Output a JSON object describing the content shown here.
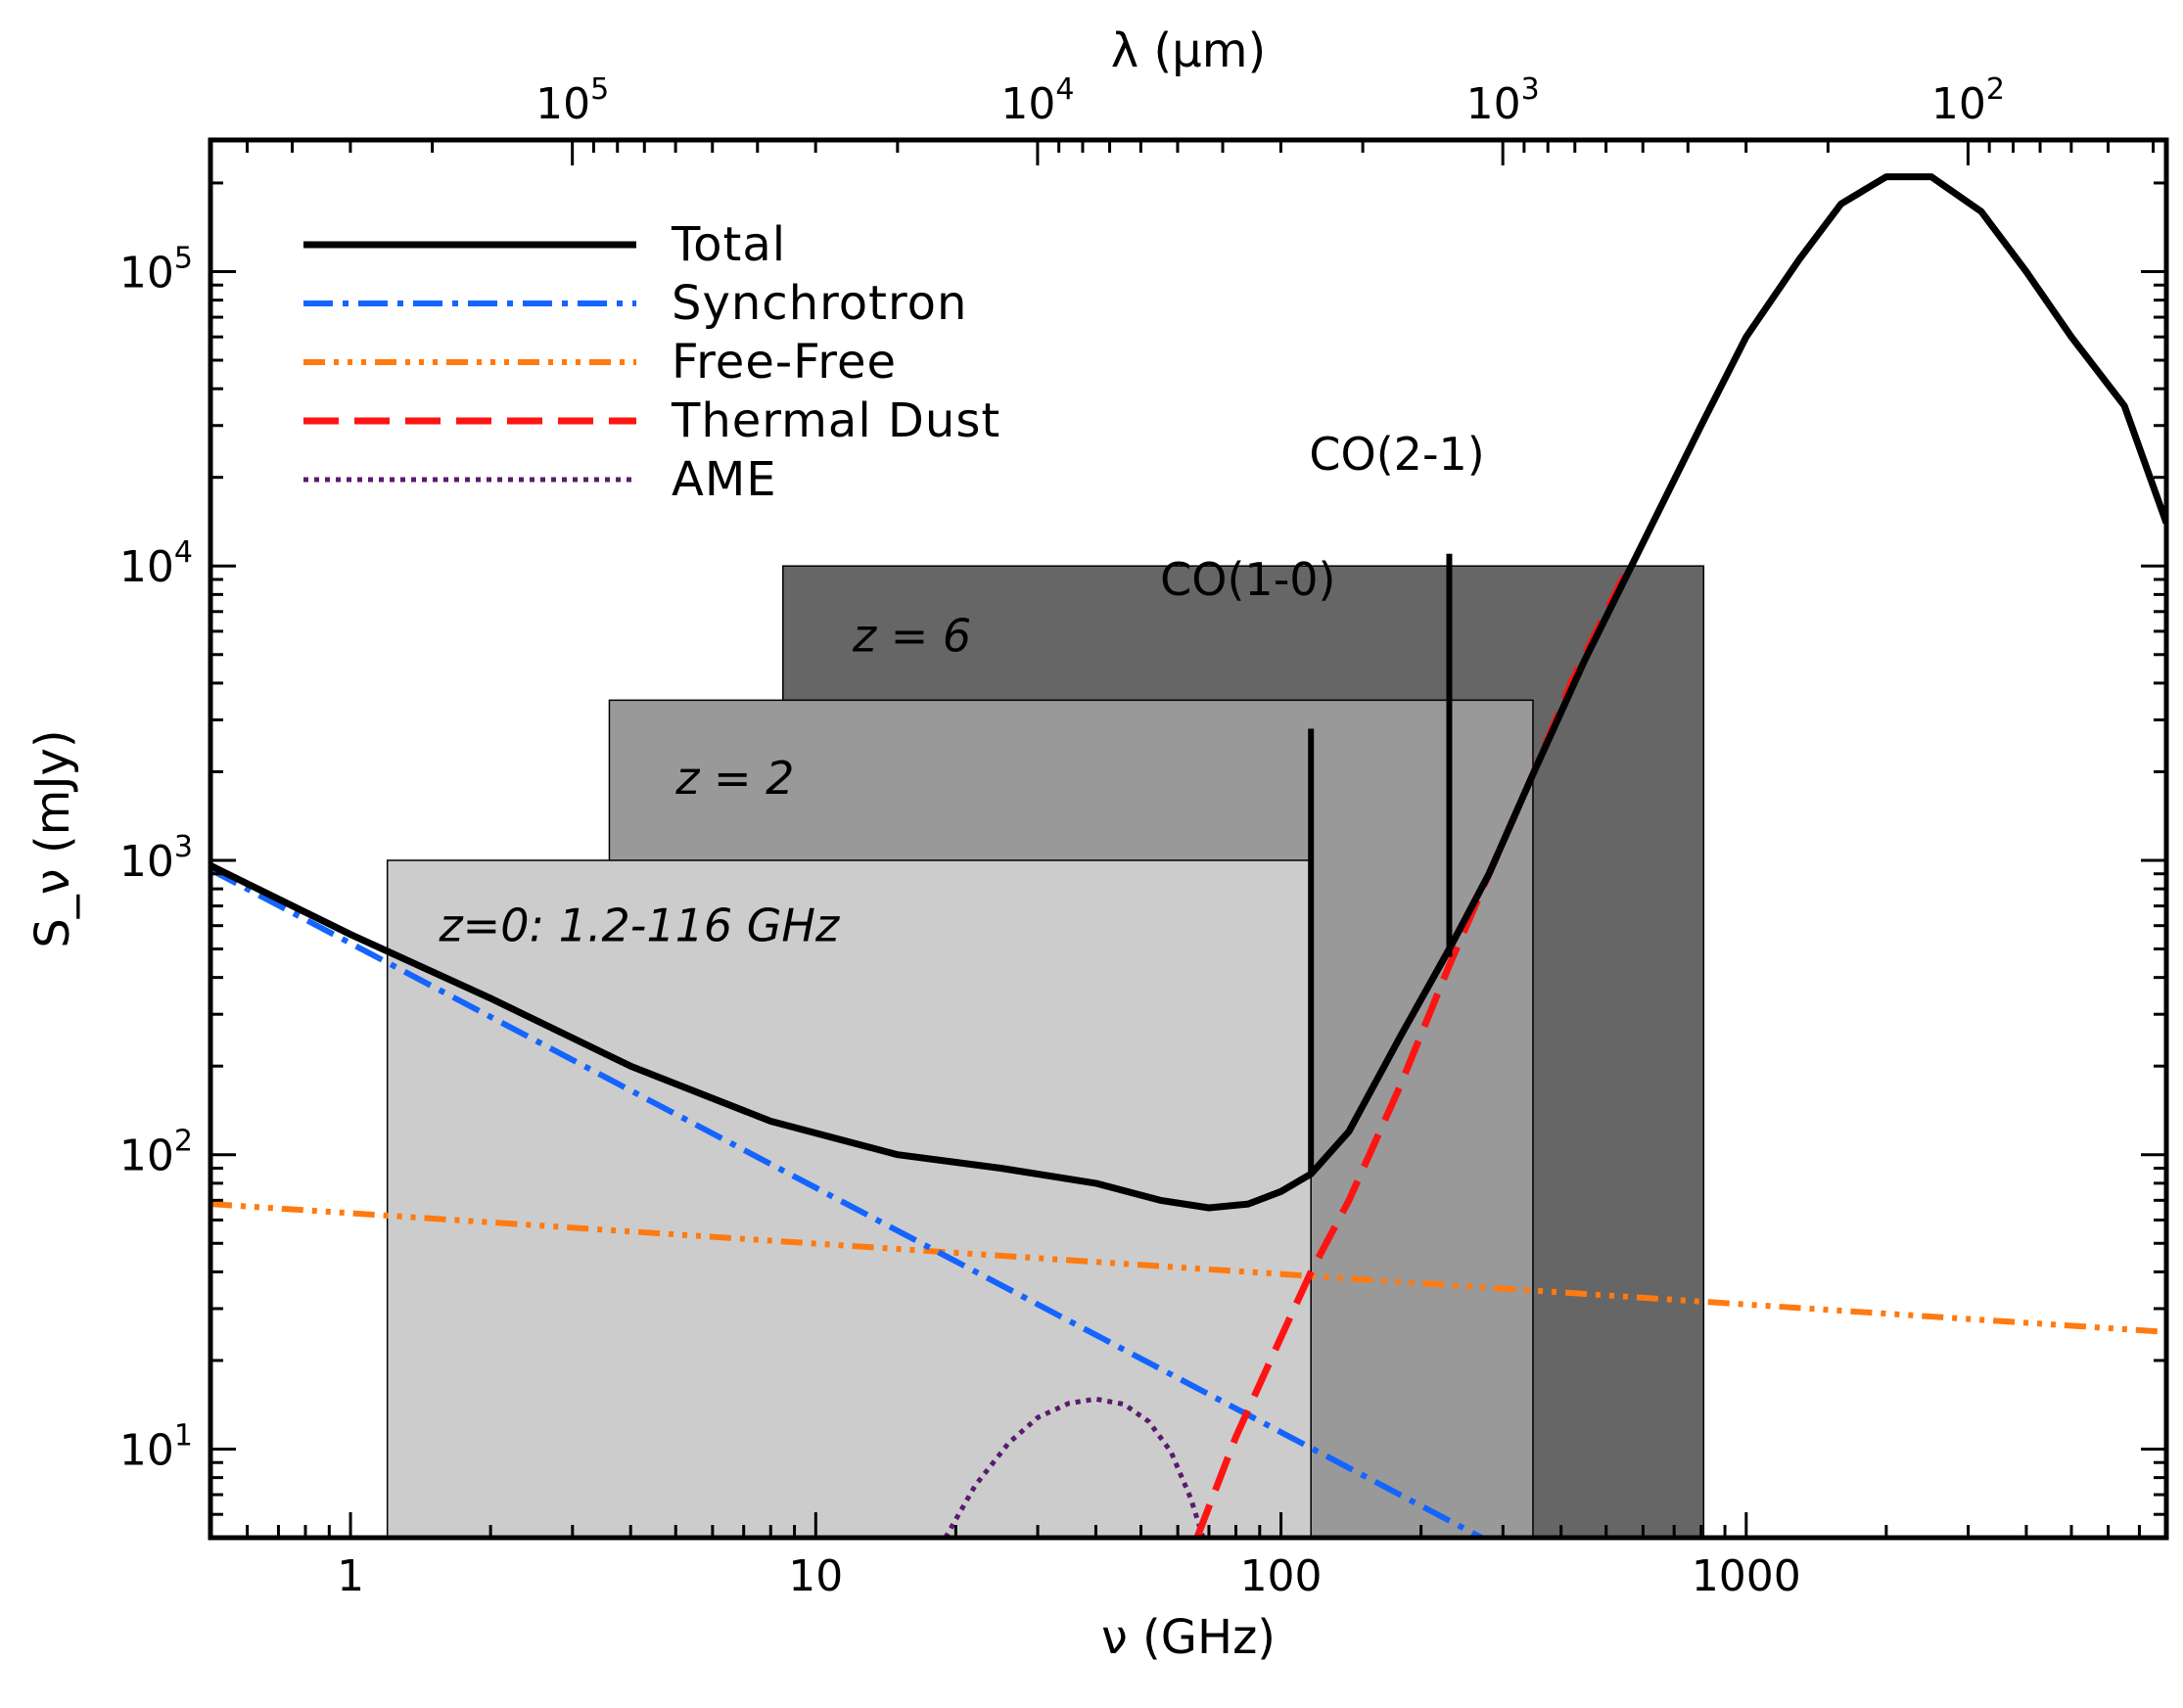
{
  "chart_data": {
    "type": "line",
    "title": "",
    "xlabel": "ν (GHz)",
    "x2label": "λ (μm)",
    "ylabel": "S_ν (mJy)",
    "xscale": "log",
    "yscale": "log",
    "xlim": [
      0.5,
      8000
    ],
    "ylim": [
      5,
      280000
    ],
    "grid": false,
    "legend_position": "top-left",
    "x_ticks": [
      {
        "value": 1,
        "label": "1"
      },
      {
        "value": 10,
        "label": "10"
      },
      {
        "value": 100,
        "label": "100"
      },
      {
        "value": 1000,
        "label": "1000"
      }
    ],
    "y_ticks": [
      {
        "value": 10,
        "base": "10",
        "exp": "1"
      },
      {
        "value": 100,
        "base": "10",
        "exp": "2"
      },
      {
        "value": 1000,
        "base": "10",
        "exp": "3"
      },
      {
        "value": 10000,
        "base": "10",
        "exp": "4"
      },
      {
        "value": 100000,
        "base": "10",
        "exp": "5"
      }
    ],
    "top_ticks": [
      {
        "lambda_um": 100000,
        "base": "10",
        "exp": "5"
      },
      {
        "lambda_um": 10000,
        "base": "10",
        "exp": "4"
      },
      {
        "lambda_um": 1000,
        "base": "10",
        "exp": "3"
      },
      {
        "lambda_um": 100,
        "base": "10",
        "exp": "2"
      }
    ],
    "bands": [
      {
        "name": "z = 6",
        "x0": 8.5,
        "x1": 810,
        "y0": 5,
        "y1": 10000,
        "color": "#666666",
        "label_x": 12,
        "label_y": 5800
      },
      {
        "name": "z = 2",
        "x0": 3.6,
        "x1": 348,
        "y0": 5,
        "y1": 3500,
        "color": "#999999",
        "label_x": 5,
        "label_y": 1900
      },
      {
        "name": "z=0: 1.2-116 GHz",
        "x0": 1.2,
        "x1": 116,
        "y0": 5,
        "y1": 1000,
        "color": "#cccccc",
        "label_x": 1.55,
        "label_y": 600
      }
    ],
    "series": [
      {
        "name": "Free-Free",
        "color": "#ff7a10",
        "dash": "22 9 5 9 5 9 5 9",
        "width": 6,
        "x": [
          0.5,
          8000
        ],
        "y": [
          68,
          25
        ]
      },
      {
        "name": "Synchrotron",
        "color": "#1464ff",
        "dash": "30 10 6 10",
        "width": 6,
        "x": [
          0.5,
          270
        ],
        "y": [
          930,
          5
        ]
      },
      {
        "name": "AME",
        "color": "#5a1a6e",
        "dash": "5 6",
        "width": 5,
        "x": [
          19,
          22,
          26,
          30,
          35,
          40,
          46,
          52,
          58,
          64,
          68
        ],
        "y": [
          5,
          7.5,
          10.5,
          12.8,
          14.3,
          14.8,
          14.2,
          12.4,
          9.8,
          6.8,
          5
        ]
      },
      {
        "name": "Thermal Dust",
        "color": "#ff1414",
        "dash": "36 16",
        "width": 7,
        "x": [
          66,
          80,
          100,
          116,
          140,
          180,
          230,
          280,
          350,
          420,
          500,
          560
        ],
        "y": [
          5,
          11,
          24,
          40,
          70,
          170,
          440,
          900,
          2000,
          4000,
          7000,
          10000
        ]
      },
      {
        "name": "Total",
        "color": "#000000",
        "dash": "",
        "width": 7,
        "x": [
          0.5,
          1,
          2,
          4,
          8,
          15,
          25,
          40,
          55,
          70,
          85,
          100,
          116,
          140,
          180,
          230,
          280,
          350,
          450,
          600,
          800,
          1000,
          1300,
          1600,
          2000,
          2500,
          3200,
          4000,
          5000,
          6500,
          8000
        ],
        "y": [
          960,
          560,
          340,
          200,
          130,
          100,
          90,
          80,
          70,
          66,
          68,
          75,
          86,
          120,
          250,
          500,
          900,
          2000,
          4800,
          12000,
          30000,
          60000,
          110000,
          170000,
          210000,
          210000,
          160000,
          100000,
          60000,
          35000,
          14000
        ]
      }
    ],
    "lines": [
      {
        "name": "CO(1-0)",
        "x": 116,
        "y0": 86,
        "y1": 2800,
        "label_x": 55,
        "label_y": 9000
      },
      {
        "name": "CO(2-1)",
        "x": 230,
        "y0": 470,
        "y1": 11000,
        "label_x": 115,
        "label_y": 24000
      }
    ],
    "legend": [
      {
        "label": "Total",
        "series": "Total"
      },
      {
        "label": "Synchrotron",
        "series": "Synchrotron"
      },
      {
        "label": "Free-Free",
        "series": "Free-Free"
      },
      {
        "label": "Thermal Dust",
        "series": "Thermal Dust"
      },
      {
        "label": "AME",
        "series": "AME"
      }
    ]
  }
}
